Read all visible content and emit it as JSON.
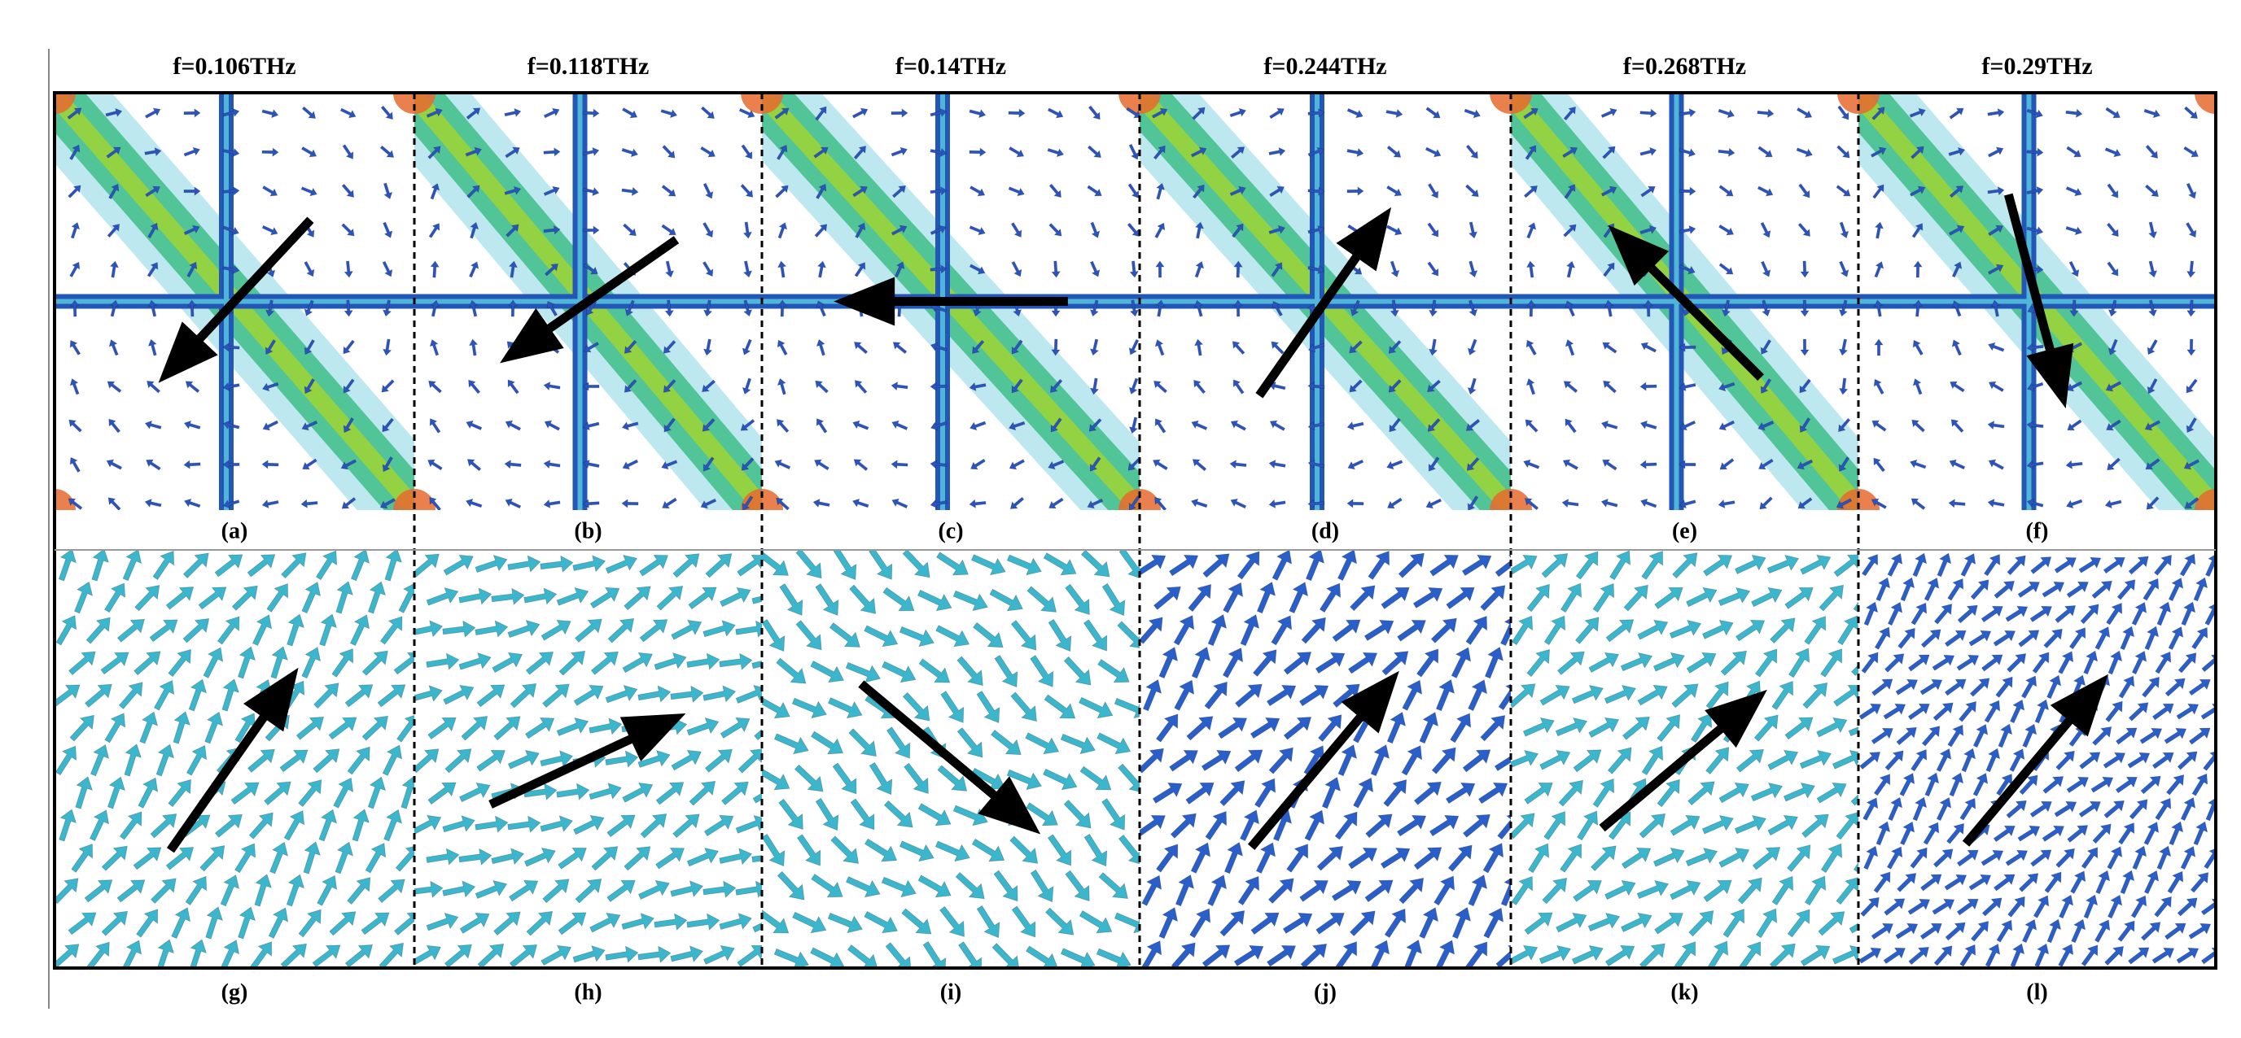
{
  "columns": [
    {
      "frequency": "f=0.106THz",
      "top_label": "(a)",
      "bottom_label": "(g)"
    },
    {
      "frequency": "f=0.118THz",
      "top_label": "(b)",
      "bottom_label": "(h)"
    },
    {
      "frequency": "f=0.14THz",
      "top_label": "(c)",
      "bottom_label": "(i)"
    },
    {
      "frequency": "f=0.244THz",
      "top_label": "(d)",
      "bottom_label": "(j)"
    },
    {
      "frequency": "f=0.268THz",
      "top_label": "(e)",
      "bottom_label": "(k)"
    },
    {
      "frequency": "f=0.29THz",
      "top_label": "(f)",
      "bottom_label": "(l)"
    }
  ]
}
